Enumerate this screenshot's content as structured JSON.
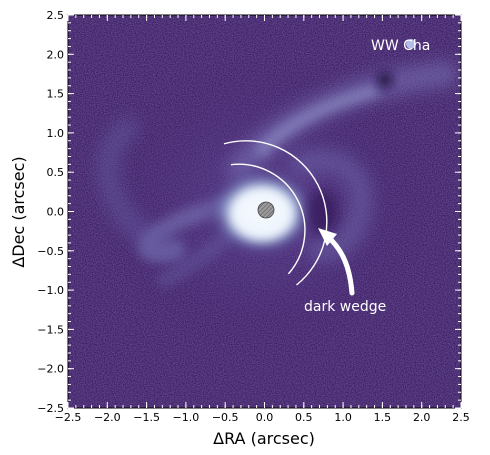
{
  "image": {
    "target_label": "WW Cha",
    "annotation_label": "dark wedge",
    "colormap": [
      "#2a0f4e",
      "#3f1c6b",
      "#6a4c9c",
      "#a9bfe0",
      "#eef6ff"
    ]
  },
  "axes": {
    "xlabel": "ΔRA (arcsec)",
    "ylabel": "ΔDec (arcsec)",
    "xlim": [
      -2.5,
      2.5
    ],
    "ylim": [
      -2.5,
      2.5
    ],
    "xticks": [
      "−2.5",
      "−2.0",
      "−1.5",
      "−1.0",
      "−0.5",
      "0.0",
      "0.5",
      "1.0",
      "1.5",
      "2.0",
      "2.5"
    ],
    "yticks": [
      "2.5",
      "2.0",
      "1.5",
      "1.0",
      "0.5",
      "0.0",
      "−0.5",
      "−1.0",
      "−1.5",
      "−2.0",
      "−2.5"
    ]
  }
}
